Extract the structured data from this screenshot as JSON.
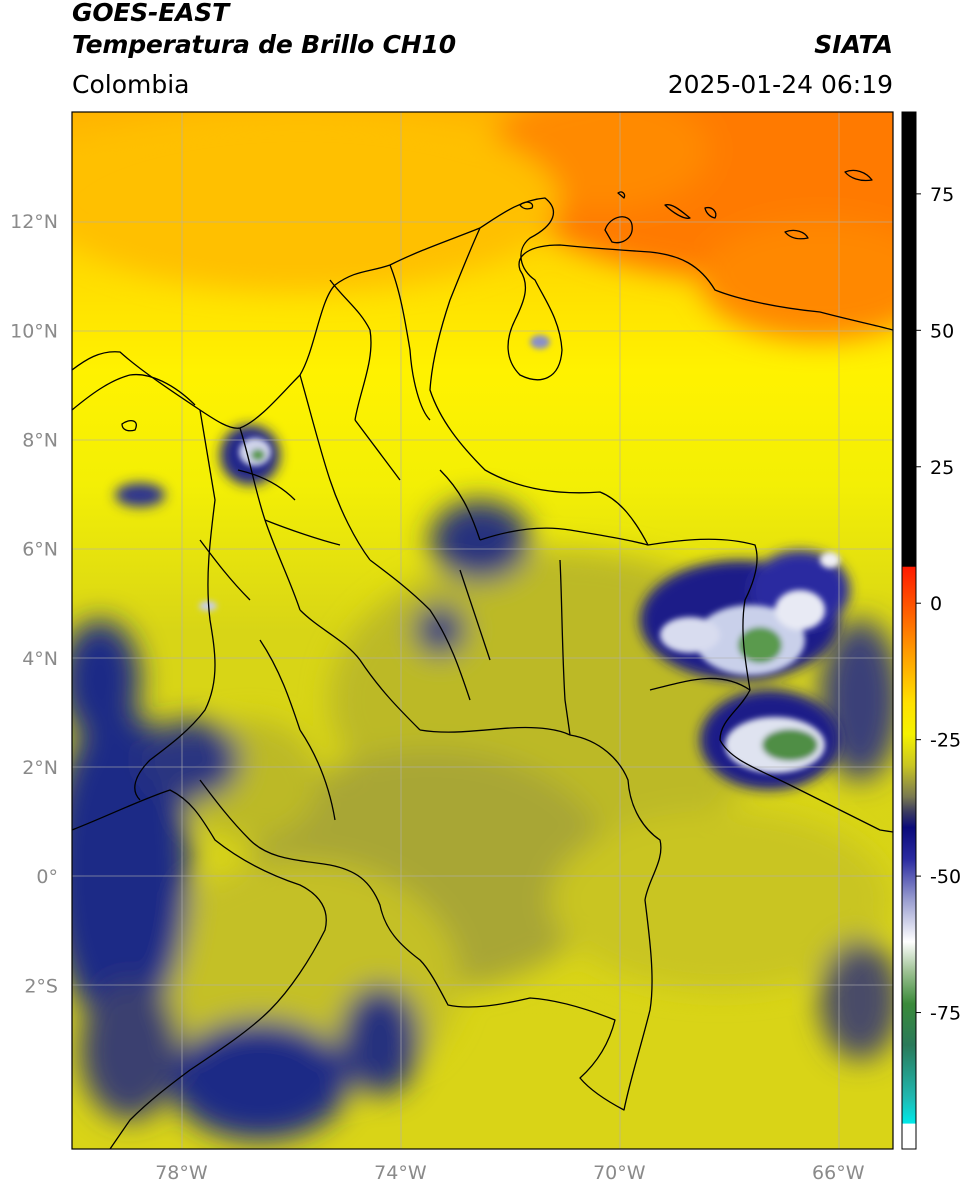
{
  "header": {
    "satellite": "GOES-EAST",
    "product": "Temperatura de Brillo CH10",
    "organization": "SIATA",
    "region": "Colombia",
    "datetime": "2025-01-24 06:19"
  },
  "map": {
    "lat_range": [
      -5,
      14
    ],
    "lon_range": [
      -80,
      -65
    ],
    "lat_ticks": [
      {
        "value": 12,
        "label": "12°N"
      },
      {
        "value": 10,
        "label": "10°N"
      },
      {
        "value": 8,
        "label": "8°N"
      },
      {
        "value": 6,
        "label": "6°N"
      },
      {
        "value": 4,
        "label": "4°N"
      },
      {
        "value": 2,
        "label": "2°N"
      },
      {
        "value": 0,
        "label": "0°"
      },
      {
        "value": -2,
        "label": "2°S"
      }
    ],
    "lon_ticks": [
      {
        "value": -78,
        "label": "78°W"
      },
      {
        "value": -74,
        "label": "74°W"
      },
      {
        "value": -70,
        "label": "70°W"
      },
      {
        "value": -66,
        "label": "66°W"
      }
    ],
    "gridlines": true
  },
  "colorbar": {
    "range": [
      -100,
      90
    ],
    "ticks": [
      {
        "value": 75,
        "label": "75"
      },
      {
        "value": 50,
        "label": "50"
      },
      {
        "value": 25,
        "label": "25"
      },
      {
        "value": 0,
        "label": "0"
      },
      {
        "value": -25,
        "label": "-25"
      },
      {
        "value": -50,
        "label": "-50"
      },
      {
        "value": -75,
        "label": "-75"
      }
    ]
  }
}
